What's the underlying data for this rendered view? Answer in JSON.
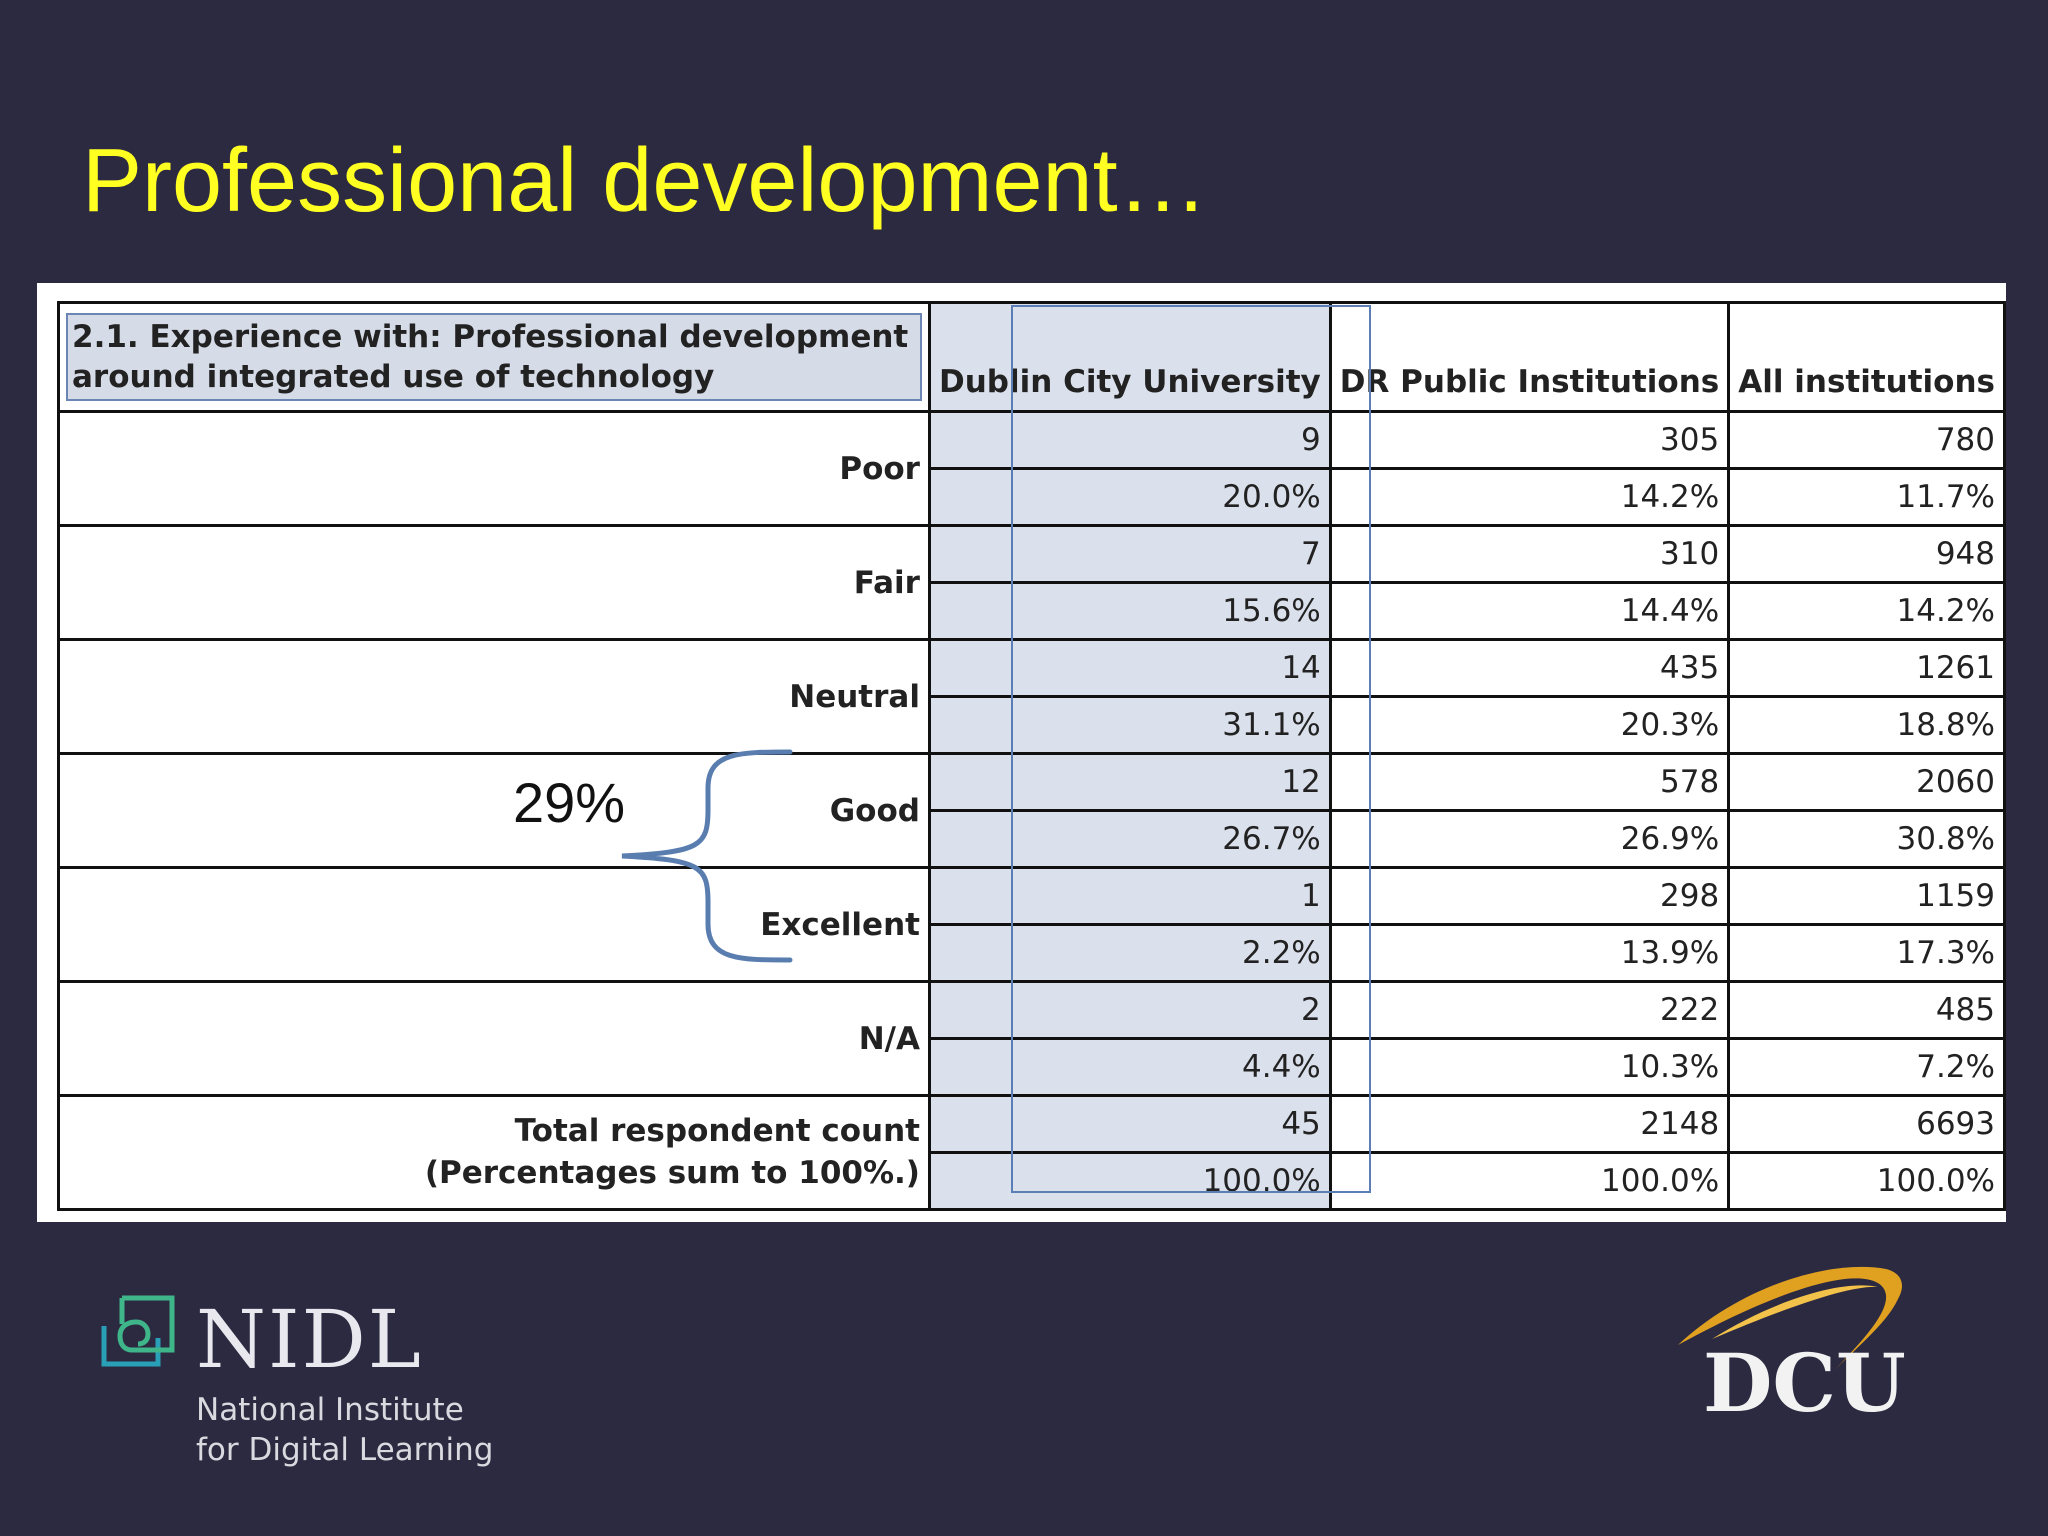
{
  "title": "Professional development…",
  "table": {
    "question": "2.1. Experience with: Professional development around integrated use of technology",
    "columns": [
      "Dublin City University",
      "DR Public Institutions",
      "All institutions"
    ],
    "rows": [
      {
        "label": "Poor",
        "counts": [
          "9",
          "305",
          "780"
        ],
        "percents": [
          "20.0%",
          "14.2%",
          "11.7%"
        ]
      },
      {
        "label": "Fair",
        "counts": [
          "7",
          "310",
          "948"
        ],
        "percents": [
          "15.6%",
          "14.4%",
          "14.2%"
        ]
      },
      {
        "label": "Neutral",
        "counts": [
          "14",
          "435",
          "1261"
        ],
        "percents": [
          "31.1%",
          "20.3%",
          "18.8%"
        ]
      },
      {
        "label": "Good",
        "counts": [
          "12",
          "578",
          "2060"
        ],
        "percents": [
          "26.7%",
          "26.9%",
          "30.8%"
        ]
      },
      {
        "label": "Excellent",
        "counts": [
          "1",
          "298",
          "1159"
        ],
        "percents": [
          "2.2%",
          "13.9%",
          "17.3%"
        ]
      },
      {
        "label": "N/A",
        "counts": [
          "2",
          "222",
          "485"
        ],
        "percents": [
          "4.4%",
          "10.3%",
          "7.2%"
        ]
      }
    ],
    "total": {
      "label": "Total respondent count",
      "note": "(Percentages sum to 100%.)",
      "counts": [
        "45",
        "2148",
        "6693"
      ],
      "percents": [
        "100.0%",
        "100.0%",
        "100.0%"
      ]
    }
  },
  "annotation": "29%",
  "logos": {
    "nidl": {
      "name": "NIDL",
      "line1": "National Institute",
      "line2": "for Digital Learning"
    },
    "dcu": {
      "name": "DCU"
    }
  },
  "colors": {
    "background": "#2c2a40",
    "title": "#ffff22",
    "highlight": "#dbe1ec",
    "brace": "#5a7db0"
  }
}
